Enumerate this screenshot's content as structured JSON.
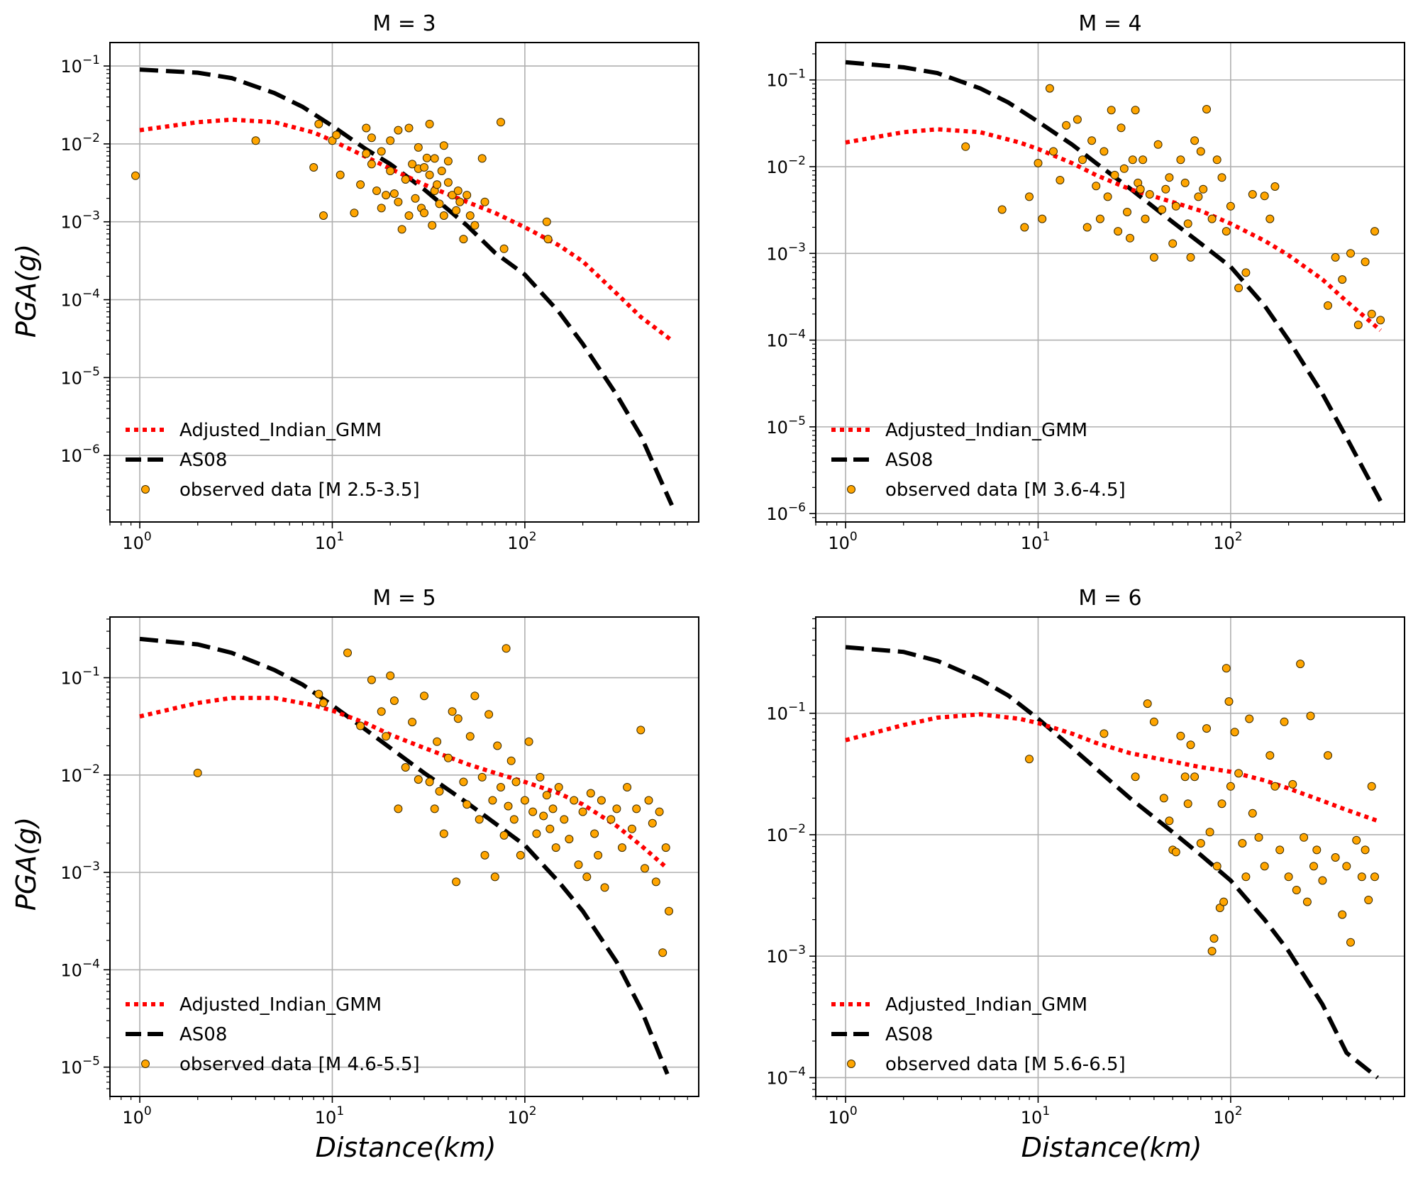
{
  "figure": {
    "xlabel": "Distance(km)",
    "ylabel": "PGA(g)",
    "colors": {
      "adjusted_indian_gmm": "#ff0000",
      "as08": "#000000",
      "observed_fill": "#ffa500",
      "observed_edge": "#3a2a00",
      "grid": "#b0b0b0"
    },
    "legend": {
      "adjusted_label": "Adjusted_Indian_GMM",
      "as08_label": "AS08"
    }
  },
  "chart_data": [
    {
      "type": "scatter",
      "title": "M = 3",
      "x_scale": "log",
      "y_scale": "log",
      "xlim": [
        0.7,
        800
      ],
      "ylim": [
        1.4e-07,
        0.2
      ],
      "yticks_exp": [
        -6,
        -5,
        -4,
        -3,
        -2,
        -1
      ],
      "xticks_exp": [
        0,
        1,
        2
      ],
      "grid": true,
      "legend_position": "lower left",
      "observed_label": "observed data [M 2.5-3.5]",
      "series": [
        {
          "name": "Adjusted_Indian_GMM",
          "x": [
            1,
            2,
            3,
            5,
            8,
            10,
            15,
            20,
            30,
            50,
            70,
            100,
            150,
            200,
            300,
            400,
            580
          ],
          "y": [
            0.015,
            0.019,
            0.0205,
            0.019,
            0.014,
            0.011,
            0.0068,
            0.0048,
            0.003,
            0.0018,
            0.0013,
            0.00085,
            0.0005,
            0.00031,
            0.00012,
            6e-05,
            3e-05
          ]
        },
        {
          "name": "AS08",
          "x": [
            1,
            2,
            3,
            5,
            7,
            10,
            15,
            20,
            30,
            50,
            70,
            100,
            150,
            200,
            300,
            400,
            580
          ],
          "y": [
            0.09,
            0.082,
            0.07,
            0.045,
            0.03,
            0.017,
            0.0085,
            0.0055,
            0.0026,
            0.0009,
            0.0004,
            0.00021,
            7e-05,
            2.7e-05,
            6e-06,
            1.8e-06,
            2.3e-07
          ]
        },
        {
          "name": "observed data [M 2.5-3.5]",
          "x": [
            0.95,
            4,
            8,
            8.5,
            9,
            10,
            10.5,
            11,
            13,
            14,
            15,
            15,
            16,
            16,
            17,
            18,
            18,
            19,
            20,
            20,
            21,
            22,
            22,
            23,
            24,
            25,
            25,
            26,
            27,
            28,
            28,
            29,
            30,
            30,
            31,
            32,
            32,
            33,
            34,
            34,
            35,
            36,
            37,
            38,
            38,
            40,
            40,
            42,
            44,
            45,
            46,
            48,
            50,
            52,
            55,
            60,
            62,
            75,
            78,
            130,
            132
          ],
          "y": [
            0.0039,
            0.011,
            0.005,
            0.018,
            0.0012,
            0.011,
            0.013,
            0.004,
            0.0013,
            0.003,
            0.0075,
            0.016,
            0.0055,
            0.012,
            0.0025,
            0.0015,
            0.008,
            0.0022,
            0.011,
            0.0045,
            0.0023,
            0.0018,
            0.015,
            0.0008,
            0.0035,
            0.016,
            0.0012,
            0.0055,
            0.002,
            0.0048,
            0.009,
            0.0015,
            0.0013,
            0.005,
            0.0066,
            0.004,
            0.018,
            0.0009,
            0.0025,
            0.0065,
            0.003,
            0.0017,
            0.0045,
            0.0012,
            0.0095,
            0.0032,
            0.006,
            0.0022,
            0.0014,
            0.0025,
            0.0018,
            0.0006,
            0.0022,
            0.0012,
            0.0009,
            0.0065,
            0.0018,
            0.019,
            0.00045,
            0.001,
            0.0006
          ]
        }
      ]
    },
    {
      "type": "scatter",
      "title": "M = 4",
      "x_scale": "log",
      "y_scale": "log",
      "xlim": [
        0.7,
        800
      ],
      "ylim": [
        8e-07,
        0.27
      ],
      "yticks_exp": [
        -6,
        -5,
        -4,
        -3,
        -2,
        -1
      ],
      "xticks_exp": [
        0,
        1,
        2
      ],
      "grid": true,
      "legend_position": "lower left",
      "observed_label": "observed data [M 3.6-4.5]",
      "series": [
        {
          "name": "Adjusted_Indian_GMM",
          "x": [
            1,
            2,
            3,
            5,
            8,
            10,
            15,
            20,
            30,
            50,
            70,
            100,
            150,
            200,
            300,
            400,
            600
          ],
          "y": [
            0.019,
            0.025,
            0.027,
            0.025,
            0.019,
            0.016,
            0.011,
            0.008,
            0.0055,
            0.0039,
            0.0031,
            0.0022,
            0.0014,
            0.00095,
            0.0005,
            0.00028,
            0.00013
          ]
        },
        {
          "name": "AS08",
          "x": [
            1,
            2,
            3,
            5,
            7,
            10,
            15,
            20,
            30,
            50,
            70,
            100,
            150,
            200,
            300,
            400,
            600
          ],
          "y": [
            0.16,
            0.14,
            0.12,
            0.08,
            0.055,
            0.033,
            0.018,
            0.011,
            0.0056,
            0.0023,
            0.0013,
            0.0007,
            0.00025,
            0.0001,
            2.4e-05,
            7.5e-06,
            1.4e-06
          ]
        },
        {
          "name": "observed data [M 3.6-4.5]",
          "x": [
            4.2,
            6.5,
            8.5,
            9,
            10,
            10.5,
            11.5,
            12,
            13,
            14,
            16,
            17,
            18,
            19,
            20,
            21,
            22,
            23,
            24,
            25,
            26,
            27,
            28,
            29,
            30,
            31,
            32,
            33,
            34,
            35,
            36,
            38,
            40,
            42,
            44,
            46,
            48,
            50,
            52,
            55,
            58,
            60,
            62,
            65,
            68,
            70,
            72,
            75,
            80,
            85,
            90,
            95,
            100,
            110,
            120,
            130,
            150,
            160,
            170,
            320,
            350,
            380,
            420,
            460,
            500,
            540,
            560,
            600
          ],
          "y": [
            0.017,
            0.0032,
            0.002,
            0.0045,
            0.011,
            0.0025,
            0.08,
            0.015,
            0.007,
            0.03,
            0.035,
            0.012,
            0.002,
            0.02,
            0.006,
            0.0025,
            0.015,
            0.0045,
            0.045,
            0.008,
            0.0018,
            0.028,
            0.0095,
            0.003,
            0.0015,
            0.012,
            0.045,
            0.0065,
            0.0055,
            0.012,
            0.0025,
            0.0048,
            0.0009,
            0.018,
            0.0032,
            0.0055,
            0.0075,
            0.0013,
            0.0035,
            0.012,
            0.0065,
            0.0022,
            0.0009,
            0.02,
            0.0045,
            0.015,
            0.0055,
            0.046,
            0.0025,
            0.012,
            0.0075,
            0.0018,
            0.0035,
            0.0004,
            0.0006,
            0.0048,
            0.0046,
            0.0025,
            0.0059,
            0.00025,
            0.0009,
            0.0005,
            0.001,
            0.00015,
            0.0008,
            0.0002,
            0.0018,
            0.00017
          ]
        }
      ]
    },
    {
      "type": "scatter",
      "title": "M = 5",
      "x_scale": "log",
      "y_scale": "log",
      "xlim": [
        0.7,
        800
      ],
      "ylim": [
        5e-06,
        0.42
      ],
      "yticks_exp": [
        -5,
        -4,
        -3,
        -2,
        -1
      ],
      "xticks_exp": [
        0,
        1,
        2
      ],
      "grid": true,
      "legend_position": "lower left",
      "observed_label": "observed data [M 4.6-5.5]",
      "series": [
        {
          "name": "Adjusted_Indian_GMM",
          "x": [
            1,
            2,
            3,
            5,
            8,
            10,
            15,
            20,
            30,
            50,
            70,
            100,
            150,
            200,
            300,
            400,
            550
          ],
          "y": [
            0.04,
            0.055,
            0.062,
            0.062,
            0.052,
            0.046,
            0.034,
            0.026,
            0.019,
            0.013,
            0.0105,
            0.0085,
            0.0065,
            0.005,
            0.003,
            0.0019,
            0.0011
          ]
        },
        {
          "name": "AS08",
          "x": [
            1,
            2,
            3,
            5,
            7,
            10,
            15,
            20,
            30,
            50,
            70,
            100,
            150,
            200,
            300,
            400,
            550
          ],
          "y": [
            0.25,
            0.22,
            0.18,
            0.12,
            0.085,
            0.052,
            0.029,
            0.019,
            0.0105,
            0.0052,
            0.0032,
            0.0019,
            0.0008,
            0.0004,
            0.00012,
            4e-05,
            8.5e-06
          ]
        },
        {
          "name": "observed data [M 4.6-5.5]",
          "x": [
            2,
            8.5,
            9,
            12,
            14,
            16,
            18,
            19,
            20,
            21,
            22,
            24,
            26,
            28,
            30,
            32,
            34,
            35,
            36,
            38,
            40,
            42,
            44,
            45,
            48,
            50,
            52,
            55,
            58,
            60,
            62,
            65,
            68,
            70,
            72,
            75,
            78,
            80,
            82,
            85,
            88,
            90,
            95,
            100,
            105,
            110,
            115,
            120,
            125,
            130,
            135,
            140,
            145,
            150,
            160,
            170,
            180,
            190,
            200,
            210,
            220,
            230,
            240,
            250,
            260,
            280,
            300,
            320,
            340,
            360,
            380,
            400,
            420,
            440,
            460,
            480,
            500,
            520,
            540,
            560
          ],
          "y": [
            0.0105,
            0.068,
            0.055,
            0.18,
            0.032,
            0.095,
            0.045,
            0.025,
            0.105,
            0.058,
            0.0045,
            0.012,
            0.035,
            0.009,
            0.065,
            0.0085,
            0.0045,
            0.022,
            0.0068,
            0.0025,
            0.015,
            0.045,
            0.0008,
            0.038,
            0.0085,
            0.005,
            0.025,
            0.065,
            0.0035,
            0.0095,
            0.0015,
            0.042,
            0.0055,
            0.0009,
            0.02,
            0.0075,
            0.0024,
            0.2,
            0.0048,
            0.014,
            0.0035,
            0.0085,
            0.0015,
            0.0055,
            0.022,
            0.0042,
            0.0025,
            0.0095,
            0.0038,
            0.0062,
            0.0028,
            0.0045,
            0.0018,
            0.0075,
            0.0035,
            0.0022,
            0.0055,
            0.0012,
            0.0042,
            0.0009,
            0.0065,
            0.0025,
            0.0015,
            0.0055,
            0.0007,
            0.0035,
            0.0045,
            0.0018,
            0.0075,
            0.0028,
            0.0045,
            0.029,
            0.0011,
            0.0055,
            0.0032,
            0.0008,
            0.0042,
            0.00015,
            0.0018,
            0.0004
          ]
        }
      ]
    },
    {
      "type": "scatter",
      "title": "M = 6",
      "x_scale": "log",
      "y_scale": "log",
      "xlim": [
        0.7,
        800
      ],
      "ylim": [
        7e-05,
        0.62
      ],
      "yticks_exp": [
        -4,
        -3,
        -2,
        -1
      ],
      "xticks_exp": [
        0,
        1,
        2
      ],
      "grid": true,
      "legend_position": "lower left",
      "observed_label": "observed data [M 5.6-6.5]",
      "series": [
        {
          "name": "Adjusted_Indian_GMM",
          "x": [
            1,
            2,
            3,
            5,
            8,
            10,
            15,
            20,
            30,
            50,
            70,
            100,
            150,
            200,
            300,
            400,
            580
          ],
          "y": [
            0.06,
            0.08,
            0.092,
            0.098,
            0.09,
            0.083,
            0.068,
            0.057,
            0.047,
            0.04,
            0.036,
            0.033,
            0.028,
            0.024,
            0.019,
            0.016,
            0.013
          ]
        },
        {
          "name": "AS08",
          "x": [
            1,
            2,
            3,
            5,
            7,
            10,
            15,
            20,
            30,
            50,
            70,
            100,
            150,
            200,
            300,
            400,
            580
          ],
          "y": [
            0.35,
            0.32,
            0.27,
            0.19,
            0.14,
            0.09,
            0.052,
            0.035,
            0.02,
            0.0105,
            0.0068,
            0.0042,
            0.002,
            0.0011,
            0.0004,
            0.00016,
            0.0001
          ]
        },
        {
          "name": "observed data [M 5.6-6.5]",
          "x": [
            9,
            22,
            32,
            37,
            40,
            45,
            48,
            50,
            52,
            55,
            58,
            60,
            62,
            65,
            70,
            75,
            78,
            80,
            82,
            85,
            88,
            90,
            92,
            95,
            98,
            100,
            105,
            110,
            115,
            120,
            125,
            130,
            140,
            150,
            160,
            170,
            180,
            190,
            200,
            210,
            220,
            230,
            240,
            250,
            260,
            270,
            280,
            300,
            320,
            350,
            380,
            400,
            420,
            450,
            480,
            500,
            520,
            540,
            560
          ],
          "y": [
            0.042,
            0.068,
            0.03,
            0.12,
            0.085,
            0.02,
            0.013,
            0.0075,
            0.0072,
            0.065,
            0.03,
            0.018,
            0.055,
            0.03,
            0.0085,
            0.075,
            0.0105,
            0.0011,
            0.0014,
            0.0055,
            0.0025,
            0.018,
            0.0028,
            0.235,
            0.125,
            0.025,
            0.07,
            0.032,
            0.0085,
            0.0045,
            0.09,
            0.015,
            0.0095,
            0.0055,
            0.045,
            0.025,
            0.0075,
            0.085,
            0.0045,
            0.026,
            0.0035,
            0.255,
            0.0095,
            0.0028,
            0.095,
            0.0055,
            0.0075,
            0.0042,
            0.045,
            0.0065,
            0.0022,
            0.0055,
            0.0013,
            0.009,
            0.0045,
            0.0075,
            0.0029,
            0.025,
            0.0045
          ]
        }
      ]
    }
  ]
}
